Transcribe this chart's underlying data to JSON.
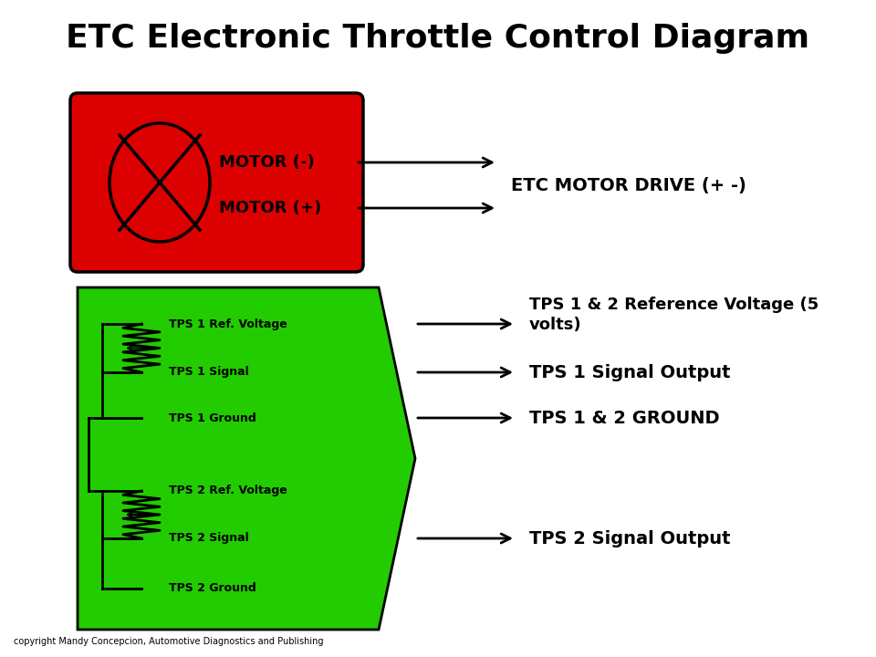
{
  "title": "ETC Electronic Throttle Control Diagram",
  "title_fontsize": 26,
  "bg_color": "#ffffff",
  "motor_box_color": "#dd0000",
  "tps_box_color": "#22cc00",
  "copyright": "copyright Mandy Concepcion, Automotive Diagnostics and Publishing",
  "motor_label1": "MOTOR (-)",
  "motor_label2": "MOTOR (+)",
  "motor_output": "ETC MOTOR DRIVE (+ -)",
  "tps_labels": [
    "TPS 1 Ref. Voltage",
    "TPS 1 Signal",
    "TPS 1 Ground",
    "TPS 2 Ref. Voltage",
    "TPS 2 Signal",
    "TPS 2 Ground"
  ],
  "tps_out0": "TPS 1 & 2 Reference Voltage (5\nvolts)",
  "tps_out1": "TPS 1 Signal Output",
  "tps_out2": "TPS 1 & 2 GROUND",
  "tps_out3": "TPS 2 Signal Output"
}
